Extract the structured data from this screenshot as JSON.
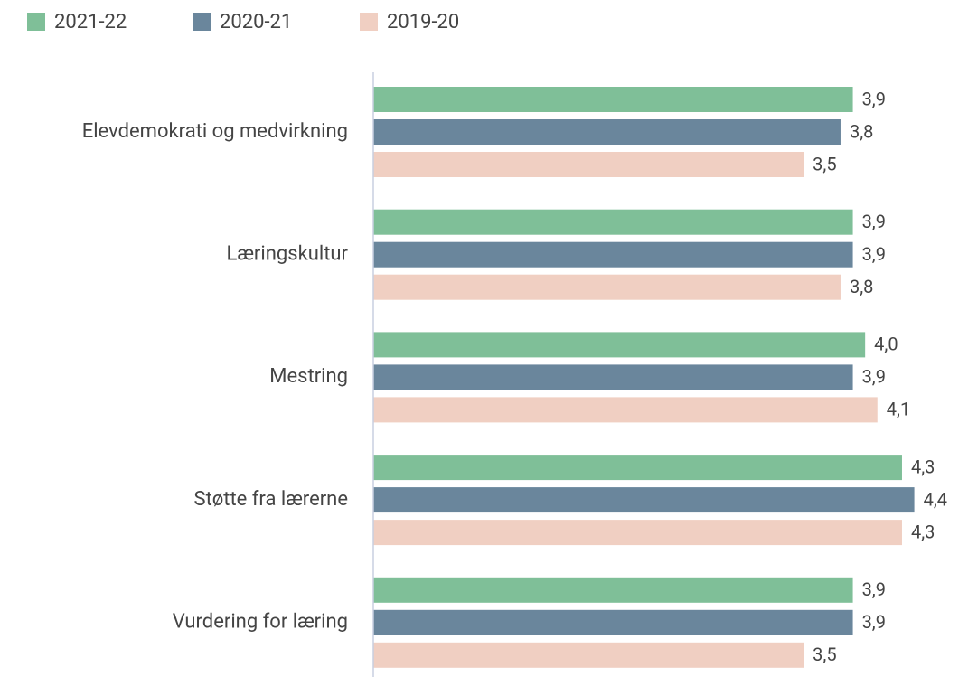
{
  "chart_data": {
    "type": "bar",
    "orientation": "horizontal",
    "categories": [
      "Elevdemokrati og medvirkning",
      "Læringskultur",
      "Mestring",
      "Støtte fra lærerne",
      "Vurdering for læring"
    ],
    "series": [
      {
        "name": "2021-22",
        "color": "#7fbf98",
        "values": [
          3.9,
          3.9,
          4.0,
          4.3,
          3.9
        ],
        "value_labels": [
          "3,9",
          "3,9",
          "4,0",
          "4,3",
          "3,9"
        ]
      },
      {
        "name": "2020-21",
        "color": "#6a869c",
        "values": [
          3.8,
          3.9,
          3.9,
          4.4,
          3.9
        ],
        "value_labels": [
          "3,8",
          "3,9",
          "3,9",
          "4,4",
          "3,9"
        ]
      },
      {
        "name": "2019-20",
        "color": "#f0cfc2",
        "values": [
          3.5,
          3.8,
          4.1,
          4.3,
          3.5
        ],
        "value_labels": [
          "3,5",
          "3,8",
          "4,1",
          "4,3",
          "3,5"
        ]
      }
    ],
    "xlim": [
      0,
      4.8
    ],
    "legend": "top-left"
  }
}
